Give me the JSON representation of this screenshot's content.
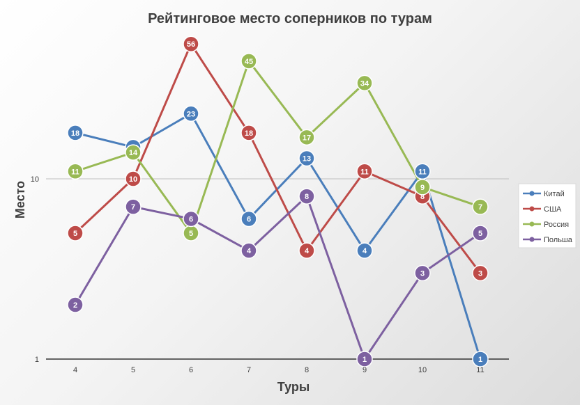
{
  "chart_data": {
    "type": "line",
    "title": "Рейтинговое место соперников по турам",
    "xlabel": "Туры",
    "ylabel": "Место",
    "y_scale": "log",
    "ylim": [
      1,
      60
    ],
    "y_ticks": [
      "1",
      "10"
    ],
    "x": [
      "4",
      "5",
      "6",
      "7",
      "8",
      "9",
      "10",
      "11"
    ],
    "grid": true,
    "legend_position": "right",
    "series": [
      {
        "name": "Китай",
        "color": "#4a7ebb",
        "values": [
          18,
          15,
          23,
          6,
          13,
          4,
          11,
          1
        ]
      },
      {
        "name": "США",
        "color": "#be4b48",
        "values": [
          5,
          10,
          56,
          18,
          4,
          11,
          8,
          3
        ]
      },
      {
        "name": "Россия",
        "color": "#98b954",
        "values": [
          11,
          14,
          5,
          45,
          17,
          34,
          9,
          7
        ]
      },
      {
        "name": "Польша",
        "color": "#7d60a0",
        "values": [
          2,
          7,
          6,
          4,
          8,
          1,
          3,
          5
        ]
      }
    ]
  }
}
